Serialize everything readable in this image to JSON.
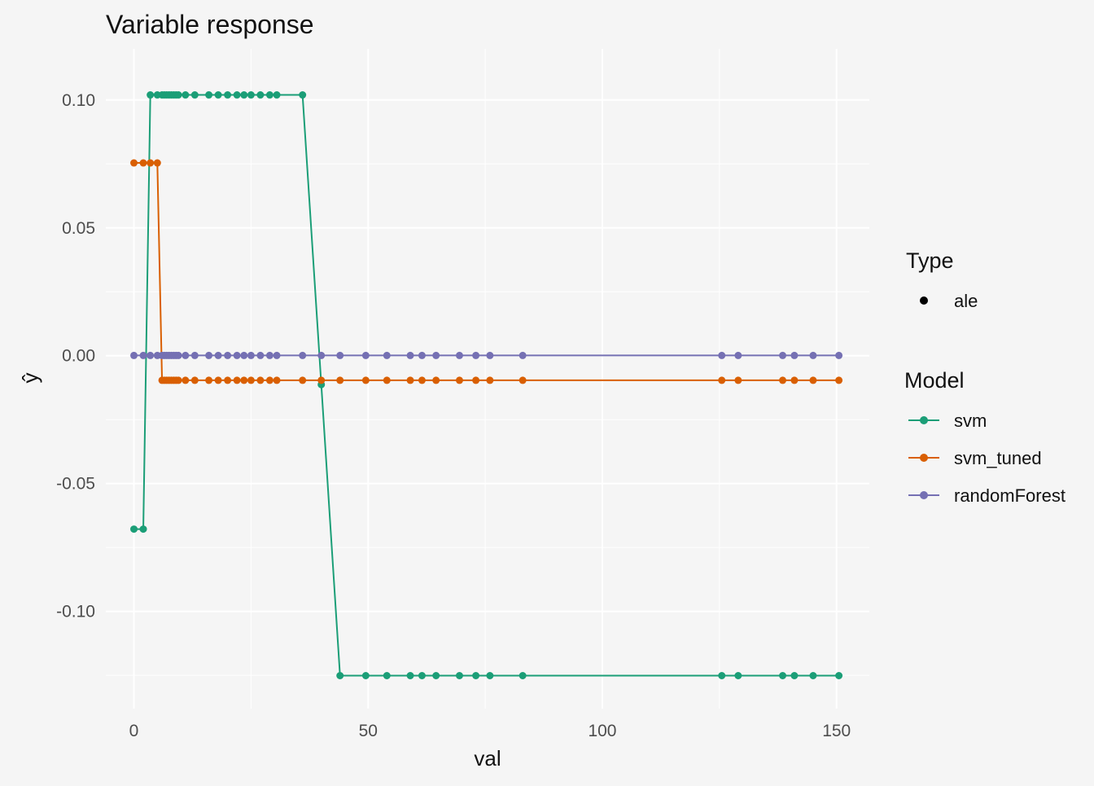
{
  "chart_data": {
    "type": "line",
    "title": "Variable response",
    "xlabel": "val",
    "ylabel": "ŷ",
    "xlim": [
      -6,
      157
    ],
    "ylim": [
      -0.138,
      0.12
    ],
    "x_ticks": [
      0,
      50,
      100,
      150
    ],
    "x_tick_labels": [
      "0",
      "50",
      "100",
      "150"
    ],
    "y_ticks": [
      -0.1,
      -0.05,
      0.0,
      0.05,
      0.1
    ],
    "y_tick_labels": [
      "-0.10",
      "-0.05",
      "0.00",
      "0.05",
      "0.10"
    ],
    "grid": true,
    "legend_position": "right",
    "legend": {
      "type_title": "Type",
      "type_items": [
        {
          "label": "ale",
          "color": "#000000"
        }
      ],
      "model_title": "Model"
    },
    "x": [
      0,
      2,
      3.5,
      5,
      6,
      6.5,
      7,
      7.5,
      8,
      8.5,
      9,
      9.5,
      11,
      13,
      16,
      18,
      20,
      22,
      23.5,
      25,
      27,
      29,
      30.5,
      36,
      40,
      44,
      49.5,
      54,
      59,
      61.5,
      64.5,
      69.5,
      73,
      76,
      83,
      125.5,
      129,
      138.5,
      141,
      145,
      150.5
    ],
    "series": [
      {
        "name": "svm",
        "color": "#1b9e77",
        "values": [
          -0.0678,
          -0.0678,
          0.102,
          0.102,
          0.102,
          0.102,
          0.102,
          0.102,
          0.102,
          0.102,
          0.102,
          0.102,
          0.102,
          0.102,
          0.102,
          0.102,
          0.102,
          0.102,
          0.102,
          0.102,
          0.102,
          0.102,
          0.102,
          0.102,
          -0.0113,
          -0.1251,
          -0.1251,
          -0.1251,
          -0.1251,
          -0.1251,
          -0.1251,
          -0.1251,
          -0.1251,
          -0.1251,
          -0.1251,
          -0.1251,
          -0.1251,
          -0.1251,
          -0.1251,
          -0.1251,
          -0.1251
        ]
      },
      {
        "name": "svm_tuned",
        "color": "#d95f02",
        "values": [
          0.0754,
          0.0754,
          0.0754,
          0.0754,
          -0.0096,
          -0.0096,
          -0.0096,
          -0.0096,
          -0.0096,
          -0.0096,
          -0.0096,
          -0.0096,
          -0.0096,
          -0.0096,
          -0.0096,
          -0.0096,
          -0.0096,
          -0.0096,
          -0.0096,
          -0.0096,
          -0.0096,
          -0.0096,
          -0.0096,
          -0.0096,
          -0.0096,
          -0.0096,
          -0.0096,
          -0.0096,
          -0.0096,
          -0.0096,
          -0.0096,
          -0.0096,
          -0.0096,
          -0.0096,
          -0.0096,
          -0.0096,
          -0.0096,
          -0.0096,
          -0.0096,
          -0.0096,
          -0.0096
        ]
      },
      {
        "name": "randomForest",
        "color": "#7570b3",
        "values": [
          0.0001,
          0.0001,
          0.0001,
          0.0001,
          0.0001,
          0.0001,
          0.0001,
          0.0001,
          0.0001,
          0.0001,
          0.0001,
          0.0001,
          0.0001,
          0.0001,
          0.0001,
          0.0001,
          0.0001,
          0.0001,
          0.0001,
          0.0001,
          0.0001,
          0.0001,
          0.0001,
          0.0001,
          0.0001,
          0.0001,
          0.0001,
          0.0001,
          0.0001,
          0.0001,
          0.0001,
          0.0001,
          0.0001,
          0.0001,
          0.0001,
          0.0001,
          0.0001,
          0.0001,
          0.0001,
          0.0001,
          0.0001
        ]
      }
    ]
  }
}
